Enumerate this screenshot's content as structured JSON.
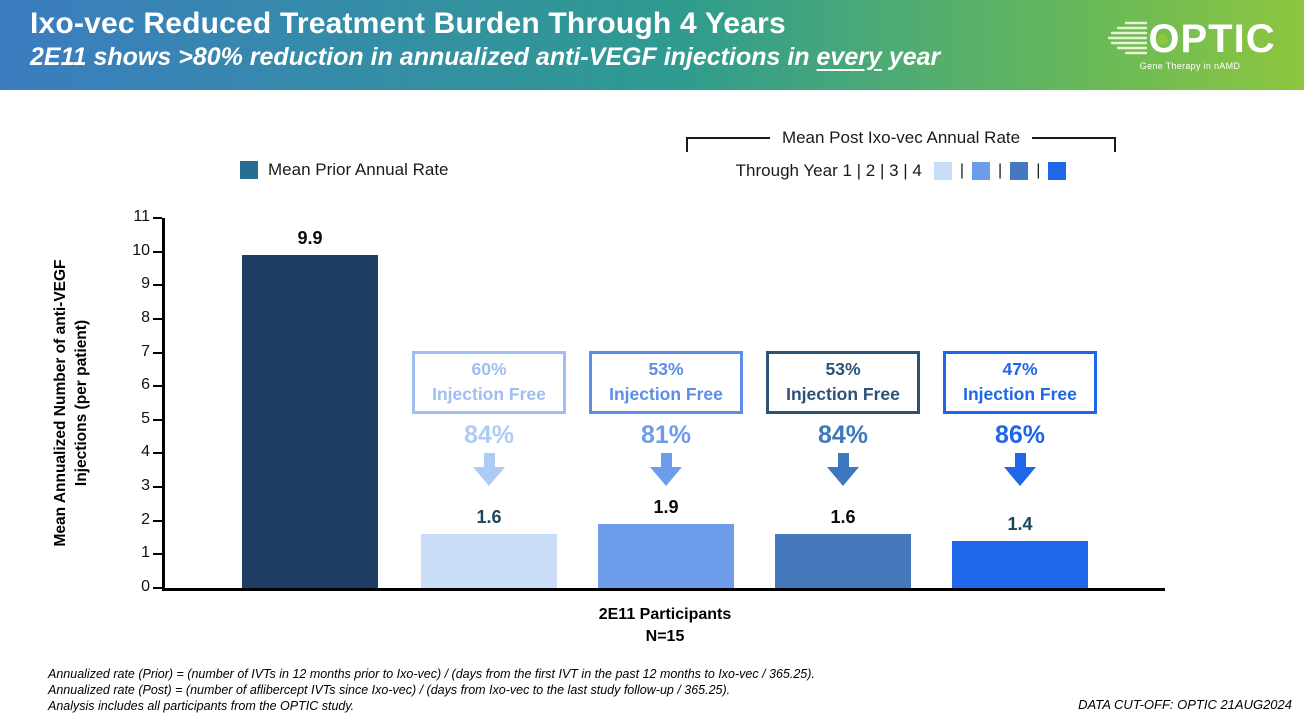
{
  "header": {
    "title": "Ixo-vec Reduced Treatment Burden Through 4 Years",
    "subtitle": {
      "prefix": "2E11 shows >80% reduction in annualized anti-VEGF injections in ",
      "underlined": "every",
      "suffix": " year"
    },
    "logo": {
      "name": "OPTIC",
      "tagline": "Gene Therapy in nAMD",
      "accent_color": "#8DC63F"
    }
  },
  "legend": {
    "prior": {
      "label": "Mean Prior Annual Rate",
      "color": "#2A6D94"
    },
    "post": {
      "title": "Mean Post Ixo-vec Annual Rate",
      "years_label": "Through Year 1 | 2 | 3 | 4",
      "separator": "|",
      "colors": [
        "#C9DCF8",
        "#6D9DEA",
        "#4678BC",
        "#1E66EA"
      ]
    }
  },
  "chart_data": {
    "type": "bar",
    "ylabel": "Mean Annualized Number of anti-VEGF Injections (per patient)",
    "ylabel_lines": [
      "Mean Annualized Number of anti-VEGF",
      "Injections (per patient)"
    ],
    "xlabel_lines": [
      "2E11 Participants",
      "N=15"
    ],
    "ylim": [
      0,
      11
    ],
    "ytick_step": 1,
    "grid": false,
    "categories": [
      "Mean Prior Annual Rate",
      "Post Ixo-vec Through Year 1",
      "Post Ixo-vec Through Year 2",
      "Post Ixo-vec Through Year 3",
      "Post Ixo-vec Through Year 4"
    ],
    "values": [
      9.9,
      1.6,
      1.9,
      1.6,
      1.4
    ],
    "bar_labels": [
      "9.9",
      "1.6",
      "1.9",
      "1.6",
      "1.4"
    ],
    "bar_colors": [
      "#1F3D63",
      "#C9DCF8",
      "#6D9DEA",
      "#4678BC",
      "#1E66EA"
    ],
    "bar_label_colors": [
      "#0B0B0B",
      "#17495E",
      "#0B0B0B",
      "#0B0B0B",
      "#17495E"
    ],
    "annotations": [
      {
        "box_line1": "60%",
        "box_line2": "Injection Free",
        "reduction": "84%",
        "box_color": "#9FBEF2",
        "pct_color": "#AECBF5"
      },
      {
        "box_line1": "53%",
        "box_line2": "Injection Free",
        "reduction": "81%",
        "box_color": "#5B8DE9",
        "pct_color": "#6D9DEA"
      },
      {
        "box_line1": "53%",
        "box_line2": "Injection Free",
        "reduction": "84%",
        "box_color": "#2C5276",
        "pct_color": "#3E78BE"
      },
      {
        "box_line1": "47%",
        "box_line2": "Injection Free",
        "reduction": "86%",
        "box_color": "#1E66EA",
        "pct_color": "#1E66EA"
      }
    ]
  },
  "footer": {
    "footnotes": [
      "Annualized rate (Prior) = (number of IVTs in 12 months prior to Ixo-vec) / (days from the first IVT in the past 12 months to Ixo-vec / 365.25).",
      "Annualized rate (Post) = (number of aflibercept IVTs since Ixo-vec) / (days from Ixo-vec to the last study follow-up / 365.25).",
      "Analysis includes all participants from the OPTIC study."
    ],
    "data_cutoff": "DATA CUT-OFF: OPTIC 21AUG2024"
  }
}
